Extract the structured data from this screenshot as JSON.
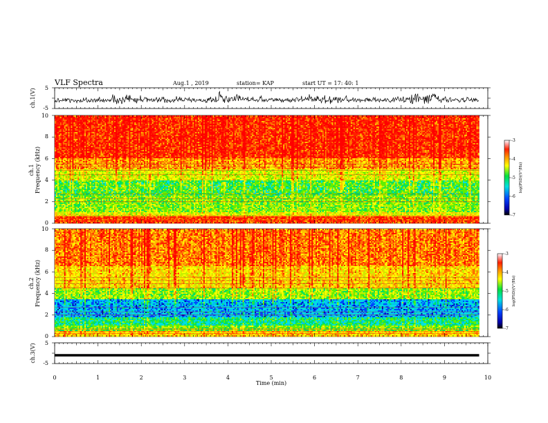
{
  "header": {
    "title": "VLF Spectra",
    "date": "Aug.1 , 2019",
    "station": "station= KAP",
    "start": "start UT = 17: 40: 1"
  },
  "chart_data": [
    {
      "type": "line",
      "name": "waveform-ch1",
      "ylabel": "ch.1(V)",
      "ylim": [
        -5,
        5
      ],
      "yticks": [
        "5",
        "-5"
      ],
      "xlim": [
        0,
        10
      ]
    },
    {
      "type": "heatmap",
      "name": "spectrogram-ch1",
      "ylabel": "ch.1 Frequency (kHz)",
      "ylabel_line1": "ch.1",
      "ylabel_line2": "Frequency (kHz)",
      "ylim": [
        0,
        10
      ],
      "yticks": [
        "0",
        "2",
        "4",
        "6",
        "8",
        "10"
      ],
      "xlim": [
        0,
        9.8
      ],
      "colorbar": {
        "label": "log(PSD)(V²/Hz)",
        "range": [
          -7,
          -3
        ],
        "ticks": [
          "-3",
          "-4",
          "-5",
          "-6",
          "-7"
        ]
      }
    },
    {
      "type": "heatmap",
      "name": "spectrogram-ch2",
      "ylabel": "ch.2 Frequency (kHz)",
      "ylabel_line1": "ch.2",
      "ylabel_line2": "Frequency (kHz)",
      "ylim": [
        0,
        10
      ],
      "yticks": [
        "0",
        "2",
        "4",
        "6",
        "8",
        "10"
      ],
      "xlim": [
        0,
        9.8
      ],
      "colorbar": {
        "label": "log(PSD)(V²/Hz)",
        "range": [
          -7,
          -3
        ],
        "ticks": [
          "-3",
          "-4",
          "-5",
          "-6",
          "-7"
        ]
      }
    },
    {
      "type": "line",
      "name": "waveform-ch3",
      "ylabel": "ch.3(V)",
      "ylim": [
        -5,
        5
      ],
      "yticks": [
        "5",
        "-5"
      ],
      "level": -1,
      "xlim": [
        0,
        10
      ]
    }
  ],
  "xaxis": {
    "label": "Time (min)",
    "range": [
      0,
      10
    ],
    "ticks": [
      "0",
      "1",
      "2",
      "3",
      "4",
      "5",
      "6",
      "7",
      "8",
      "9",
      "10"
    ]
  }
}
